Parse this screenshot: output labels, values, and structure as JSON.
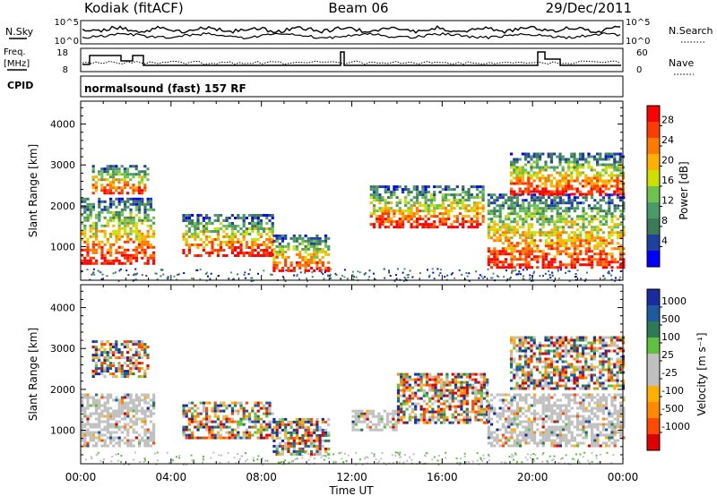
{
  "header": {
    "site": "Kodiak (fitACF)",
    "beam": "Beam 06",
    "date": "29/Dec/2011"
  },
  "summary_panels": {
    "nsky_label": "N.Sky",
    "nsky_ticks": [
      "10^5",
      "10^0"
    ],
    "nsearch_label": "N.Search",
    "nsearch_ticks": [
      "10^5",
      "10^0"
    ],
    "freq_label_top": "Freq.",
    "freq_label_bottom": "[MHz]",
    "freq_ticks": [
      "18",
      "8"
    ],
    "nave_label": "Nave",
    "nave_ticks": [
      "60",
      "0"
    ],
    "cpid_label": "CPID",
    "cpid_value": "normalsound (fast) 157 RF"
  },
  "colors": {
    "frame": "#000000",
    "power_scale": [
      "#0000ff",
      "#2040a0",
      "#3d7a57",
      "#4a9a6a",
      "#6fc24d",
      "#cde000",
      "#ffb000",
      "#ff7a00",
      "#ff3c00",
      "#ff0000"
    ],
    "velocity_scale": [
      "#e00000",
      "#ff4a00",
      "#ff8a00",
      "#ffb000",
      "#c0c0c0",
      "#c0c0c0",
      "#60c040",
      "#2e7a57",
      "#1e5aa0",
      "#1a2aa0"
    ]
  },
  "chart_data": [
    {
      "type": "heatmap",
      "title": "",
      "xlabel": "",
      "ylabel": "Slant Range [km]",
      "ylim": [
        180,
        4560
      ],
      "x_ticks": [
        "00:00",
        "04:00",
        "08:00",
        "12:00",
        "16:00",
        "20:00",
        "00:00"
      ],
      "y_ticks": [
        1000,
        2000,
        3000,
        4000
      ],
      "colorbar_label": "Power [dB]",
      "colorbar_ticks": [
        "28",
        "24",
        "20",
        "16",
        "12",
        "8",
        "4"
      ],
      "scatter_bands_approx": [
        {
          "t_start_h": 0.0,
          "t_end_h": 3.3,
          "range_lo_km": 600,
          "range_hi_km": 2200
        },
        {
          "t_start_h": 0.5,
          "t_end_h": 3.0,
          "range_lo_km": 2300,
          "range_hi_km": 3000
        },
        {
          "t_start_h": 4.5,
          "t_end_h": 8.5,
          "range_lo_km": 800,
          "range_hi_km": 1800
        },
        {
          "t_start_h": 8.5,
          "t_end_h": 11.0,
          "range_lo_km": 400,
          "range_hi_km": 1300
        },
        {
          "t_start_h": 12.8,
          "t_end_h": 17.8,
          "range_lo_km": 1500,
          "range_hi_km": 2500
        },
        {
          "t_start_h": 18.0,
          "t_end_h": 24.0,
          "range_lo_km": 500,
          "range_hi_km": 2300
        },
        {
          "t_start_h": 19.0,
          "t_end_h": 24.0,
          "range_lo_km": 2300,
          "range_hi_km": 3300
        }
      ]
    },
    {
      "type": "heatmap",
      "title": "",
      "xlabel": "Time UT",
      "ylabel": "Slant Range [km]",
      "ylim": [
        180,
        4560
      ],
      "x_ticks": [
        "00:00",
        "04:00",
        "08:00",
        "12:00",
        "16:00",
        "20:00",
        "00:00"
      ],
      "y_ticks": [
        1000,
        2000,
        3000,
        4000
      ],
      "colorbar_label": "Velocity [m s⁻¹]",
      "colorbar_ticks": [
        "1000",
        "500",
        "100",
        "25",
        "-25",
        "-100",
        "-500",
        "-1000"
      ],
      "scatter_bands_approx": [
        {
          "t_start_h": 0.0,
          "t_end_h": 3.3,
          "range_lo_km": 600,
          "range_hi_km": 1900,
          "dominant": "ground"
        },
        {
          "t_start_h": 0.5,
          "t_end_h": 3.0,
          "range_lo_km": 2300,
          "range_hi_km": 3200
        },
        {
          "t_start_h": 4.5,
          "t_end_h": 8.5,
          "range_lo_km": 800,
          "range_hi_km": 1700
        },
        {
          "t_start_h": 8.5,
          "t_end_h": 11.0,
          "range_lo_km": 400,
          "range_hi_km": 1300
        },
        {
          "t_start_h": 12.0,
          "t_end_h": 14.0,
          "range_lo_km": 1000,
          "range_hi_km": 1500,
          "dominant": "ground"
        },
        {
          "t_start_h": 14.0,
          "t_end_h": 18.0,
          "range_lo_km": 1200,
          "range_hi_km": 2400
        },
        {
          "t_start_h": 18.0,
          "t_end_h": 24.0,
          "range_lo_km": 600,
          "range_hi_km": 1900,
          "dominant": "ground"
        },
        {
          "t_start_h": 19.0,
          "t_end_h": 24.0,
          "range_lo_km": 2000,
          "range_hi_km": 3300
        }
      ]
    }
  ]
}
